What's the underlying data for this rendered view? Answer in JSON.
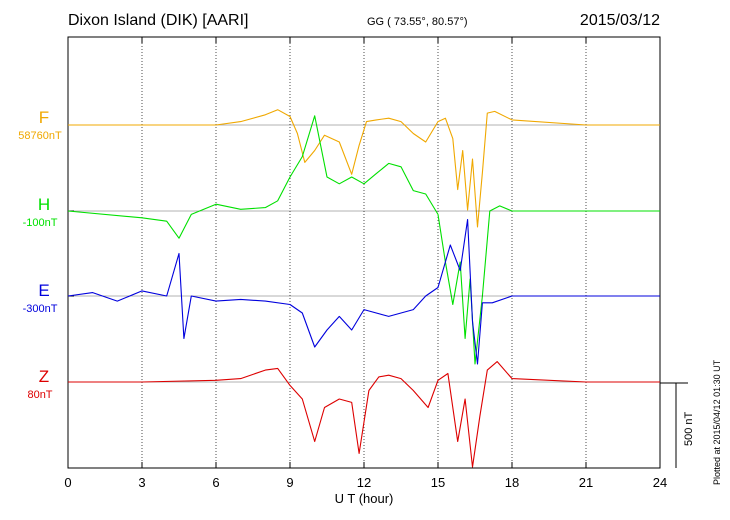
{
  "header": {
    "station": "Dixon Island (DIK)  [AARI]",
    "coords": "GG ( 73.55°,  80.57°)",
    "date": "2015/03/12"
  },
  "footer": {
    "plotted": "Plotted at 2015/04/12 01:30 UT"
  },
  "chart_data": {
    "type": "line",
    "xlabel": "U T (hour)",
    "xlim": [
      0,
      24
    ],
    "xticks": [
      "0",
      "3",
      "6",
      "9",
      "12",
      "15",
      "18",
      "21",
      "24"
    ],
    "grid": "dotted vertical lines every 3 hours",
    "scale_bar": {
      "label": "500 nT",
      "value_nT": 500
    },
    "series": [
      {
        "name": "F",
        "baseline_label": "58760nT",
        "color": "#f0a800",
        "x": [
          0,
          3,
          6,
          7,
          8,
          8.5,
          9,
          9.3,
          9.6,
          10,
          10.4,
          11,
          11.5,
          11.8,
          12.1,
          12.5,
          13,
          13.5,
          14,
          14.5,
          15,
          15.3,
          15.6,
          15.8,
          16,
          16.2,
          16.4,
          16.6,
          16.8,
          17,
          17.3,
          18,
          21,
          24
        ],
        "y": [
          0,
          0,
          0,
          20,
          60,
          90,
          50,
          -50,
          -220,
          -150,
          -60,
          -100,
          -290,
          -120,
          20,
          30,
          40,
          20,
          -50,
          -100,
          20,
          40,
          -80,
          -380,
          -150,
          -500,
          -200,
          -600,
          -280,
          70,
          80,
          30,
          0,
          0
        ]
      },
      {
        "name": "H",
        "baseline_label": "-100nT",
        "color": "#00e000",
        "x": [
          0,
          3,
          4,
          4.5,
          5,
          6,
          7,
          8,
          8.5,
          9,
          9.5,
          10,
          10.5,
          11,
          11.5,
          12,
          12.5,
          13,
          13.5,
          14,
          14.5,
          15,
          15.3,
          15.6,
          15.9,
          16.1,
          16.3,
          16.5,
          16.8,
          17.1,
          17.5,
          18,
          21,
          24
        ],
        "y": [
          0,
          -40,
          -60,
          -160,
          -20,
          40,
          10,
          20,
          60,
          200,
          320,
          560,
          200,
          160,
          200,
          160,
          220,
          280,
          260,
          120,
          100,
          -20,
          -300,
          -550,
          -300,
          -750,
          -400,
          -900,
          -500,
          0,
          30,
          0,
          0,
          0
        ]
      },
      {
        "name": "E",
        "baseline_label": "-300nT",
        "color": "#0000dd",
        "x": [
          0,
          1,
          2,
          3,
          4,
          4.5,
          4.7,
          5,
          6,
          7,
          8,
          9,
          9.5,
          10,
          10.5,
          11,
          11.5,
          12,
          13,
          14,
          14.5,
          15,
          15.5,
          15.9,
          16.2,
          16.4,
          16.6,
          16.8,
          17.2,
          18,
          21,
          24
        ],
        "y": [
          0,
          20,
          -30,
          30,
          0,
          250,
          -250,
          0,
          -30,
          -20,
          -30,
          -50,
          -100,
          -300,
          -200,
          -120,
          -200,
          -80,
          -120,
          -80,
          0,
          50,
          300,
          150,
          450,
          -150,
          -400,
          -40,
          -40,
          0,
          0,
          0
        ]
      },
      {
        "name": "Z",
        "baseline_label": "80nT",
        "color": "#dd0000",
        "x": [
          0,
          3,
          6,
          7,
          8,
          8.5,
          9,
          9.5,
          10,
          10.4,
          11,
          11.5,
          11.8,
          12.2,
          12.6,
          13,
          13.5,
          14,
          14.6,
          15,
          15.4,
          15.8,
          16.1,
          16.4,
          16.7,
          17,
          17.4,
          18,
          21,
          24
        ],
        "y": [
          0,
          0,
          10,
          20,
          70,
          80,
          -20,
          -100,
          -350,
          -150,
          -100,
          -120,
          -420,
          -50,
          30,
          40,
          20,
          -50,
          -150,
          10,
          50,
          -350,
          -100,
          -500,
          -200,
          70,
          120,
          20,
          0,
          0
        ]
      }
    ]
  }
}
